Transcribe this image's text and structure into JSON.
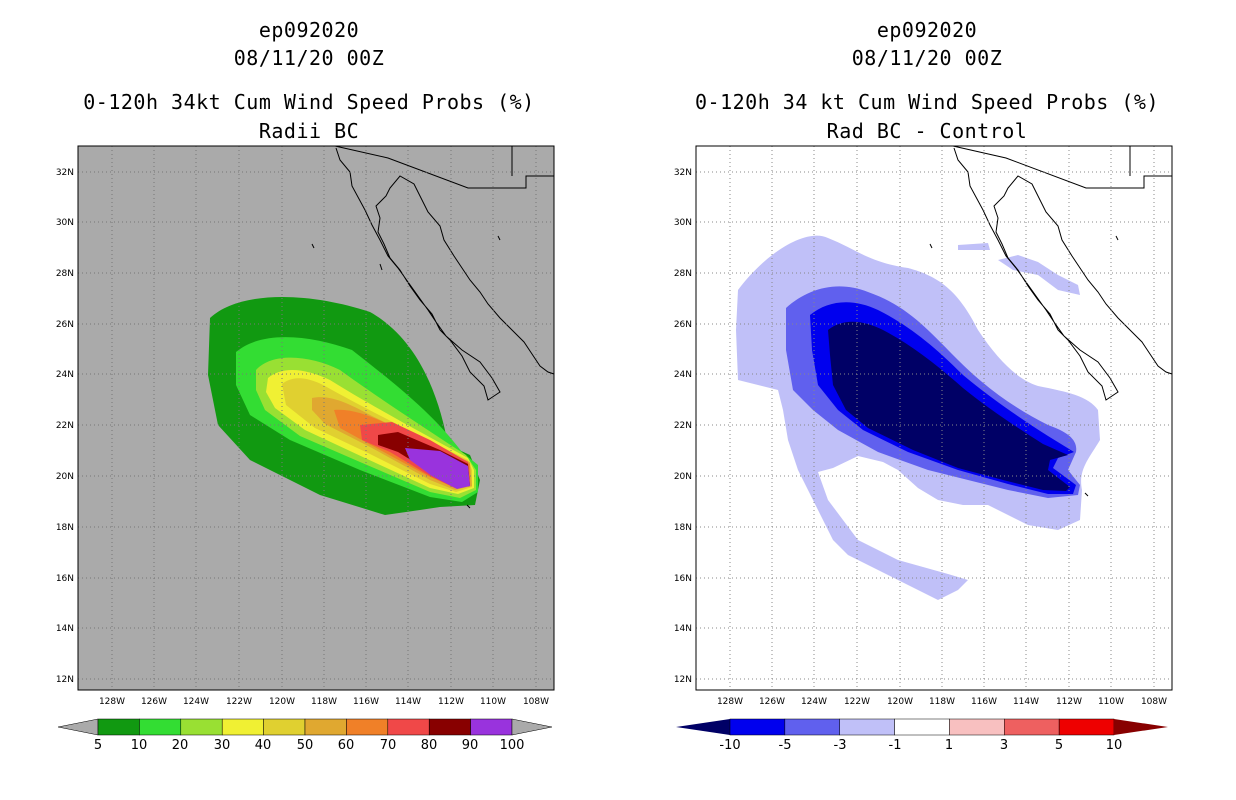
{
  "panels": [
    {
      "storm_id": "ep092020",
      "datetime": "08/11/20 00Z",
      "product": "0-120h 34kt Cum Wind Speed Probs (%)",
      "subtitle": "Radii BC",
      "background": "#aaaaaa",
      "legend": {
        "labels": [
          "5",
          "10",
          "20",
          "30",
          "40",
          "50",
          "60",
          "70",
          "80",
          "90",
          "100"
        ],
        "colors": [
          "#119911",
          "#33dd33",
          "#99e033",
          "#f0f033",
          "#e0d030",
          "#e0a830",
          "#f08028",
          "#f04848",
          "#880000",
          "#9933dd"
        ]
      }
    },
    {
      "storm_id": "ep092020",
      "datetime": "08/11/20 00Z",
      "product": "0-120h 34 kt Cum Wind Speed Probs (%)",
      "subtitle": "Rad BC - Control",
      "background": "#ffffff",
      "legend": {
        "labels": [
          "-10",
          "-5",
          "-3",
          "-1",
          "1",
          "3",
          "5",
          "10"
        ],
        "colors": [
          "#000066",
          "#0000ee",
          "#6060ee",
          "#c0c0f8",
          "#ffffff",
          "#f8c0c0",
          "#ee6060",
          "#ee0000",
          "#880000"
        ]
      }
    }
  ],
  "axes": {
    "lat_labels": [
      "32N",
      "30N",
      "28N",
      "26N",
      "24N",
      "22N",
      "20N",
      "18N",
      "16N",
      "14N",
      "12N"
    ],
    "lon_labels": [
      "128W",
      "126W",
      "124W",
      "122W",
      "120W",
      "118W",
      "116W",
      "114W",
      "112W",
      "110W",
      "108W"
    ],
    "lat_range": [
      11,
      33
    ],
    "lon_range": [
      129,
      107.5
    ]
  }
}
